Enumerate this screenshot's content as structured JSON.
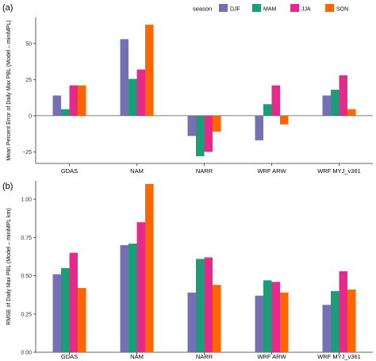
{
  "legend": {
    "title": "season",
    "items": [
      {
        "name": "DJF",
        "color": "#7570b3"
      },
      {
        "name": "MAM",
        "color": "#1b9e77"
      },
      {
        "name": "JJA",
        "color": "#e7298a"
      },
      {
        "name": "SON",
        "color": "#ff6600"
      }
    ]
  },
  "chart_data": [
    {
      "panel_label": "(a)",
      "type": "bar",
      "categories": [
        "GDAS",
        "NAM",
        "NARR",
        "WRF ARW",
        "WRF MYJ_v361"
      ],
      "series": [
        {
          "name": "DJF",
          "color": "#7570b3",
          "values": [
            14,
            53,
            -14,
            -17,
            14
          ]
        },
        {
          "name": "MAM",
          "color": "#1b9e77",
          "values": [
            4.5,
            25.5,
            -28,
            8,
            18
          ]
        },
        {
          "name": "JJA",
          "color": "#e7298a",
          "values": [
            21,
            32,
            -25,
            21,
            28
          ]
        },
        {
          "name": "SON",
          "color": "#ff6600",
          "values": [
            21,
            63,
            -11,
            -6,
            4.5
          ]
        }
      ],
      "ylabel": "Mean Percent Error of Daily Max PBL (Model – miniMPL)",
      "ylim": [
        -33,
        68
      ],
      "yticks": [
        -25,
        0,
        25,
        50
      ],
      "ytick_labels": [
        "−25",
        "0",
        "25",
        "50"
      ],
      "grid": false,
      "legend": "top"
    },
    {
      "panel_label": "(b)",
      "type": "bar",
      "categories": [
        "GDAS",
        "NAM",
        "NARR",
        "WRF ARW",
        "WRF MYJ_v361"
      ],
      "series": [
        {
          "name": "DJF",
          "color": "#7570b3",
          "values": [
            0.51,
            0.7,
            0.39,
            0.37,
            0.31
          ]
        },
        {
          "name": "MAM",
          "color": "#1b9e77",
          "values": [
            0.55,
            0.71,
            0.61,
            0.47,
            0.4
          ]
        },
        {
          "name": "JJA",
          "color": "#e7298a",
          "values": [
            0.65,
            0.85,
            0.62,
            0.46,
            0.53
          ]
        },
        {
          "name": "SON",
          "color": "#ff6600",
          "values": [
            0.42,
            1.1,
            0.44,
            0.39,
            0.41
          ]
        }
      ],
      "ylabel": "RMSE of Daily Max PBL (Model – miniMPL km)",
      "ylim": [
        0,
        1.12
      ],
      "yticks": [
        0,
        0.25,
        0.5,
        0.75,
        1.0
      ],
      "ytick_labels": [
        "0.00",
        "0.25",
        "0.50",
        "0.75",
        "1.00"
      ],
      "grid": false,
      "legend": "none"
    }
  ]
}
